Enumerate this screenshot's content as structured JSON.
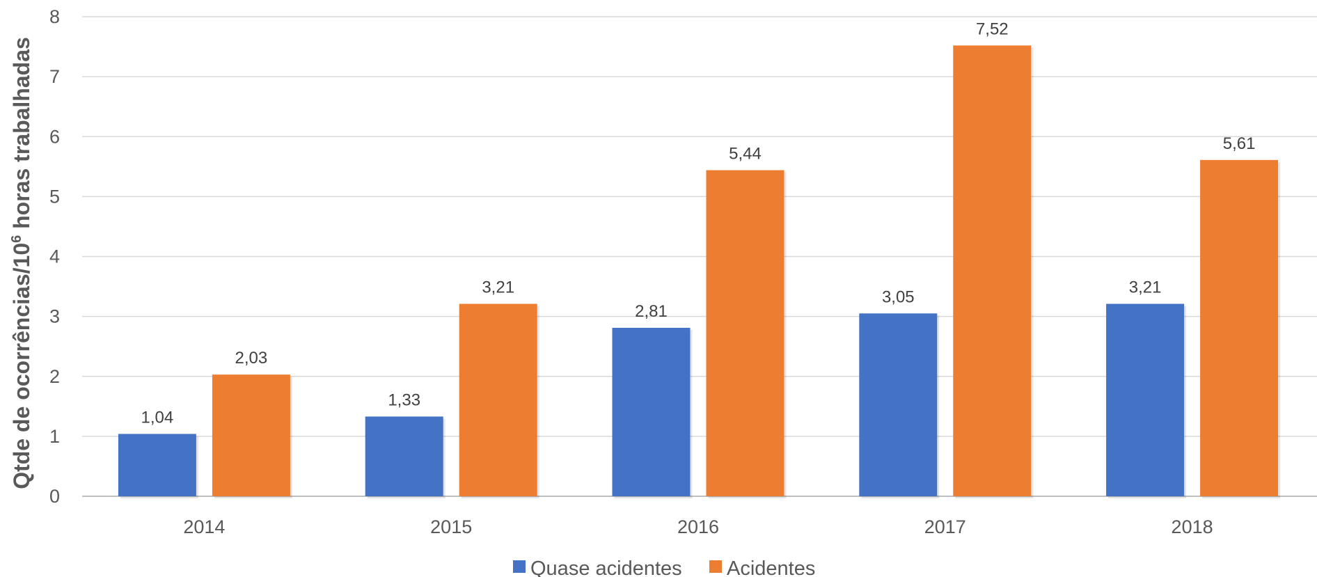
{
  "chart_data": {
    "type": "bar",
    "categories": [
      "2014",
      "2015",
      "2016",
      "2017",
      "2018"
    ],
    "series": [
      {
        "name": "Quase acidentes",
        "color": "#4472C4",
        "values": [
          1.04,
          1.33,
          2.81,
          3.05,
          3.21
        ],
        "labels": [
          "1,04",
          "1,33",
          "2,81",
          "3,05",
          "3,21"
        ]
      },
      {
        "name": "Acidentes",
        "color": "#ED7D31",
        "values": [
          2.03,
          3.21,
          5.44,
          7.52,
          5.61
        ],
        "labels": [
          "2,03",
          "3,21",
          "5,44",
          "7,52",
          "5,61"
        ]
      }
    ],
    "title": "",
    "xlabel": "",
    "ylabel_main": "Qtde de ocorrências/10",
    "ylabel_sup": "6",
    "ylabel_end": " horas trabalhadas",
    "ylim": [
      0,
      8
    ],
    "yticks": [
      "0",
      "1",
      "2",
      "3",
      "4",
      "5",
      "6",
      "7",
      "8"
    ],
    "grid": true,
    "legend_position": "bottom"
  }
}
